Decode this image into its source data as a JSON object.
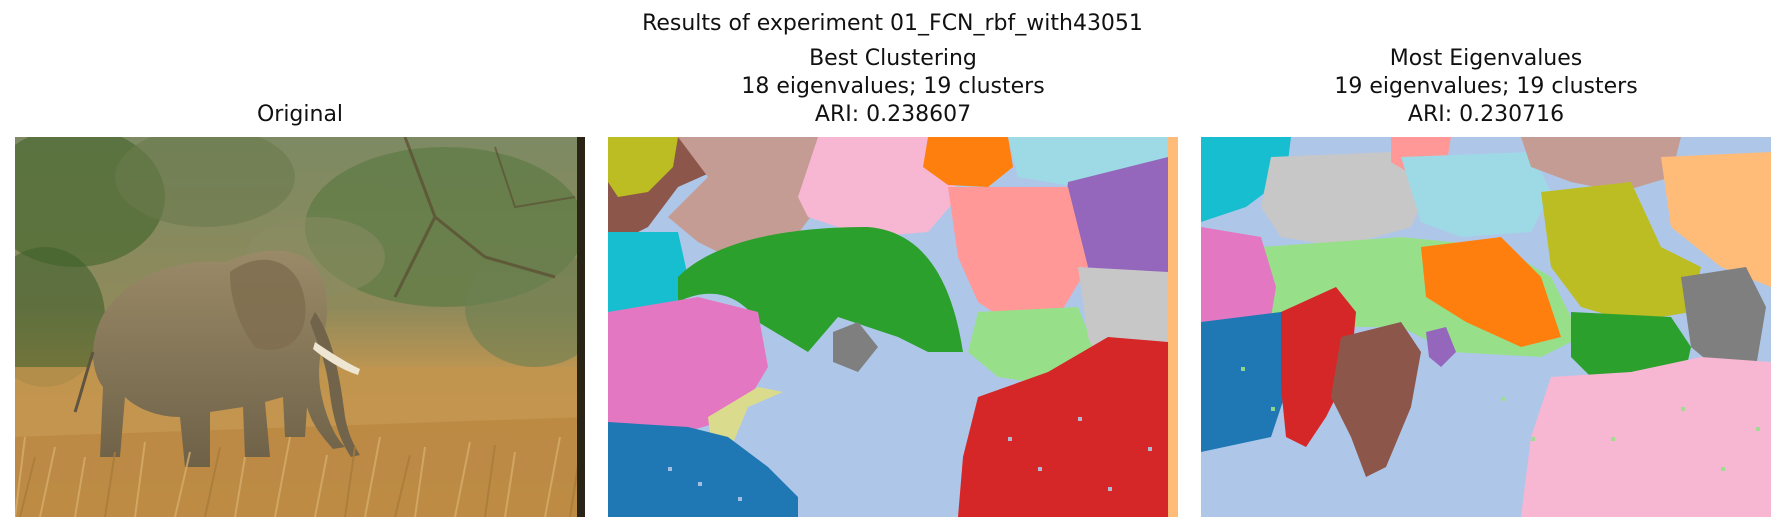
{
  "figure": {
    "suptitle": "Results of experiment 01_FCN_rbf_with43051"
  },
  "panels": [
    {
      "id": "original",
      "title_lines": [
        "Original"
      ]
    },
    {
      "id": "best-clustering",
      "title_lines": [
        "Best Clustering",
        "18 eigenvalues; 19 clusters",
        "ARI: 0.238607"
      ]
    },
    {
      "id": "most-eigenvalues",
      "title_lines": [
        "Most Eigenvalues",
        "19 eigenvalues; 19 clusters",
        "ARI: 0.230716"
      ]
    }
  ],
  "colors": {
    "tab20": [
      "#1f77b4",
      "#aec7e8",
      "#ff7f0e",
      "#ffbb78",
      "#2ca02c",
      "#98df8a",
      "#d62728",
      "#ff9896",
      "#9467bd",
      "#c5b0d5",
      "#8c564b",
      "#c49c94",
      "#e377c2",
      "#f7b6d2",
      "#7f7f7f",
      "#c7c7c7",
      "#bcbd22",
      "#dbdb8d",
      "#17becf",
      "#9edae5"
    ],
    "photo_ground": "#c9a15f",
    "photo_foliage": "#5e7a45",
    "photo_elephant": "#8a7a5c"
  }
}
